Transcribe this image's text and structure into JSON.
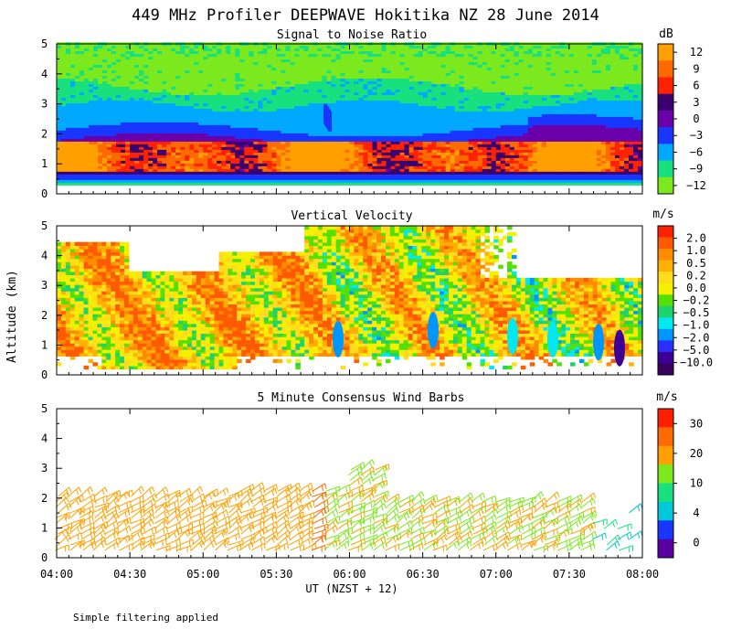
{
  "title": "449 MHz Profiler DEEPWAVE Hokitika NZ 28 June 2014",
  "ylabel": "Altitude (km)",
  "xlabel": "UT  (NZST + 12)",
  "footnote": "Simple filtering applied",
  "x_ticks": [
    "04:00",
    "04:30",
    "05:00",
    "05:30",
    "06:00",
    "06:30",
    "07:00",
    "07:30",
    "08:00"
  ],
  "y_ticks": [
    "0",
    "1",
    "2",
    "3",
    "4",
    "5"
  ],
  "chart_data": [
    {
      "type": "heatmap",
      "title": "Signal to Noise Ratio",
      "xlabel": "UT  (NZST + 12)",
      "ylabel": "Altitude (km)",
      "xlim": [
        "04:00",
        "08:00"
      ],
      "ylim": [
        0,
        5
      ],
      "units": "dB",
      "colorbar_ticks": [
        "12",
        "9",
        "6",
        "3",
        "0",
        "−3",
        "−6",
        "−9",
        "−12"
      ],
      "colors": [
        "#ffa000",
        "#ff6a00",
        "#ff2200",
        "#3a006e",
        "#6a00aa",
        "#1836ff",
        "#00a8ff",
        "#19e07f",
        "#7ce81e"
      ]
    },
    {
      "type": "heatmap",
      "title": "Vertical Velocity",
      "xlabel": "UT  (NZST + 12)",
      "ylabel": "Altitude (km)",
      "xlim": [
        "04:00",
        "08:00"
      ],
      "ylim": [
        0,
        5
      ],
      "units": "m/s",
      "colorbar_ticks": [
        "2.0",
        "1.0",
        "0.5",
        "0.2",
        "0.0",
        "−0.2",
        "−0.5",
        "−1.0",
        "−2.0",
        "−5.0",
        "−10.0"
      ],
      "colors": [
        "#ff2000",
        "#ff5a00",
        "#ff8c00",
        "#ffb000",
        "#ffdc1e",
        "#f5f000",
        "#54e000",
        "#1ed26e",
        "#00e8f0",
        "#0096ff",
        "#2830ff",
        "#3c0096",
        "#3a0060"
      ]
    },
    {
      "type": "scatter",
      "title": "5 Minute Consensus Wind Barbs",
      "xlabel": "UT  (NZST + 12)",
      "ylabel": "Altitude (km)",
      "xlim": [
        "04:00",
        "08:00"
      ],
      "ylim": [
        0,
        5
      ],
      "units": "m/s",
      "colorbar_ticks": [
        "30",
        "20",
        "10",
        "4",
        "0"
      ],
      "colors": [
        "#ff2000",
        "#ff6a00",
        "#ffa000",
        "#7ce81e",
        "#19e07f",
        "#00c8d8",
        "#1836ff",
        "#5a00a0"
      ]
    }
  ]
}
